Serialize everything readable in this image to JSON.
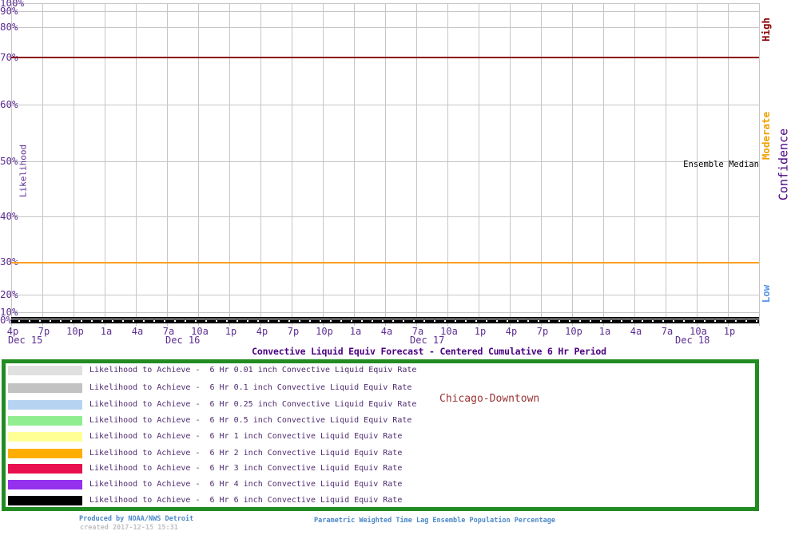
{
  "page": {
    "footer": {
      "produced_by": "Produced by NOAA/NWS Detroit",
      "created": "created 2017-12-15 15:31",
      "method": "Parametric Weighted Time Lag Ensemble Population Percentage"
    }
  },
  "chart_data": {
    "type": "line",
    "title": "Convective Liquid Equiv Forecast - Centered Cumulative 6 Hr Period",
    "location": "Chicago-Downtown",
    "x_axis": {
      "start": "Dec 15 4p",
      "end": "Dec 18 4p",
      "tick_interval_hours": 3,
      "tick_labels": [
        "4p",
        "7p",
        "10p",
        "1a",
        "4a",
        "7a",
        "10a",
        "1p",
        "4p",
        "7p",
        "10p",
        "1a",
        "4a",
        "7a",
        "10a",
        "1p",
        "4p",
        "7p",
        "10p",
        "1a",
        "4a",
        "7a",
        "10a",
        "1p"
      ],
      "date_labels": [
        "Dec 15",
        "Dec 16",
        "Dec 17",
        "Dec 18"
      ]
    },
    "y_axis": {
      "label": "Likelihood",
      "scale": "nonlinear probability",
      "range_pct": [
        0,
        100
      ],
      "ticks": [
        {
          "label": "100%",
          "value": 100
        },
        {
          "label": "90%",
          "value": 90
        },
        {
          "label": "80%",
          "value": 80
        },
        {
          "label": "70%",
          "value": 70
        },
        {
          "label": "60%",
          "value": 60
        },
        {
          "label": "50%",
          "value": 50
        },
        {
          "label": "40%",
          "value": 40
        },
        {
          "label": "30%",
          "value": 30
        },
        {
          "label": "20%",
          "value": 20
        },
        {
          "label": "10%",
          "value": 10
        },
        {
          "label": "0%",
          "value": 0
        }
      ],
      "grid": true
    },
    "y2_axis": {
      "label": "Confidence",
      "zones": [
        {
          "label": "High",
          "color": "#8b0000"
        },
        {
          "label": "Moderate",
          "color": "#f0a000"
        },
        {
          "label": "Low",
          "color": "#5591e6"
        }
      ]
    },
    "reference_lines": [
      {
        "value": 70,
        "color": "#8b0000"
      },
      {
        "value": 30,
        "color": "#ffa020"
      }
    ],
    "median": {
      "label": "Ensemble Median",
      "color": "#000000",
      "marker": "white hourly ticks",
      "constant_value_pct": 0
    },
    "series": [
      {
        "name": "Likelihood to Achieve -  6 Hr 0.01 inch Convective Liquid Equiv Rate",
        "color": "#e0e0e0",
        "constant_value_pct": 0
      },
      {
        "name": "Likelihood to Achieve -  6 Hr 0.1 inch Convective Liquid Equiv Rate",
        "color": "#c2c2c2",
        "constant_value_pct": 0
      },
      {
        "name": "Likelihood to Achieve -  6 Hr 0.25 inch Convective Liquid Equiv Rate",
        "color": "#b7d3f2",
        "constant_value_pct": 0
      },
      {
        "name": "Likelihood to Achieve -  6 Hr 0.5 inch Convective Liquid Equiv Rate",
        "color": "#90ee90",
        "constant_value_pct": 0
      },
      {
        "name": "Likelihood to Achieve -  6 Hr 1 inch Convective Liquid Equiv Rate",
        "color": "#ffff96",
        "constant_value_pct": 0
      },
      {
        "name": "Likelihood to Achieve -  6 Hr 2 inch Convective Liquid Equiv Rate",
        "color": "#ffae00",
        "constant_value_pct": 0
      },
      {
        "name": "Likelihood to Achieve -  6 Hr 3 inch Convective Liquid Equiv Rate",
        "color": "#e8104e",
        "constant_value_pct": 0
      },
      {
        "name": "Likelihood to Achieve -  6 Hr 4 inch Convective Liquid Equiv Rate",
        "color": "#9430ee",
        "constant_value_pct": 0
      },
      {
        "name": "Likelihood to Achieve -  6 Hr 6 inch Convective Liquid Equiv Rate",
        "color": "#000000",
        "constant_value_pct": 0
      }
    ],
    "legend": {
      "border_color": "#228b22",
      "position": "below chart"
    }
  }
}
